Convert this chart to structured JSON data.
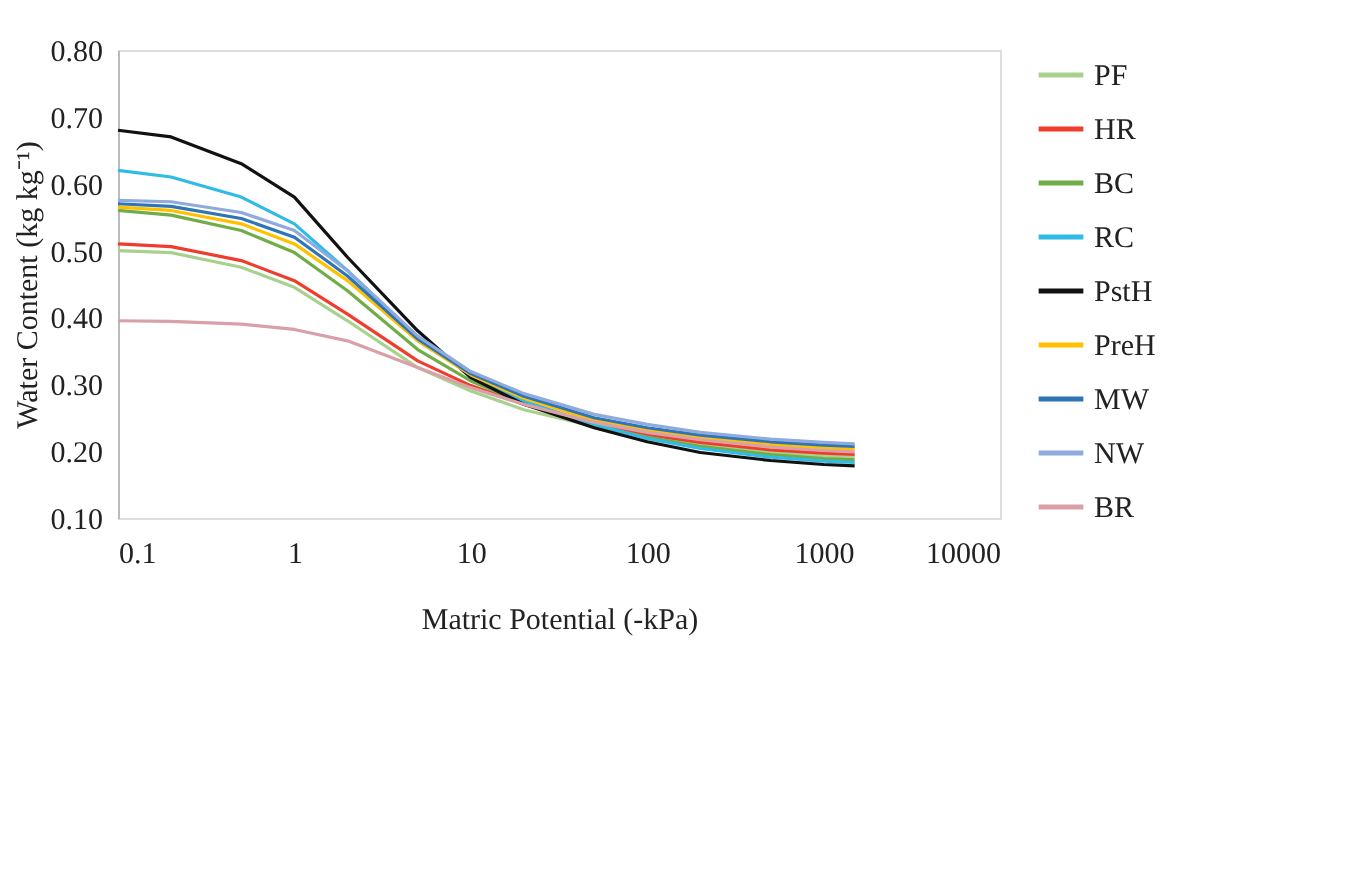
{
  "chart_data": {
    "type": "line",
    "xlabel": "Matric Potential (-kPa)",
    "ylabel": "Water Content (kg kg⁻¹)",
    "log": "x",
    "xlim": [
      0.1,
      10000
    ],
    "xticks": [
      0.1,
      1,
      10,
      100,
      1000,
      10000
    ],
    "ylim": [
      0.1,
      0.8
    ],
    "yticks": [
      {
        "value": 0.1,
        "label": "0.10"
      },
      {
        "value": 0.2,
        "label": "0.20"
      },
      {
        "value": 0.3,
        "label": "0.30"
      },
      {
        "value": 0.4,
        "label": "0.40"
      },
      {
        "value": 0.5,
        "label": "0.50"
      },
      {
        "value": 0.6,
        "label": "0.60"
      },
      {
        "value": 0.7,
        "label": "0.70"
      },
      {
        "value": 0.8,
        "label": "0.80"
      }
    ],
    "grid": false,
    "legend": "right",
    "marker": "none",
    "line_style": "solid",
    "x": [
      0.1,
      0.2,
      0.5,
      1,
      2,
      5,
      10,
      20,
      50,
      100,
      200,
      500,
      1000,
      1500
    ],
    "series": [
      {
        "name": "PF",
        "color": "#a9d18e",
        "values": [
          0.5,
          0.497,
          0.475,
          0.445,
          0.395,
          0.325,
          0.29,
          0.262,
          0.237,
          0.222,
          0.209,
          0.198,
          0.193,
          0.191
        ]
      },
      {
        "name": "HR",
        "color": "#f03c2c",
        "values": [
          0.51,
          0.506,
          0.485,
          0.455,
          0.405,
          0.335,
          0.298,
          0.27,
          0.24,
          0.225,
          0.213,
          0.202,
          0.197,
          0.195
        ]
      },
      {
        "name": "BC",
        "color": "#70ad47",
        "values": [
          0.56,
          0.553,
          0.53,
          0.497,
          0.44,
          0.352,
          0.305,
          0.272,
          0.238,
          0.221,
          0.207,
          0.195,
          0.189,
          0.187
        ]
      },
      {
        "name": "RC",
        "color": "#2ebbe8",
        "values": [
          0.62,
          0.61,
          0.58,
          0.54,
          0.47,
          0.37,
          0.315,
          0.275,
          0.24,
          0.219,
          0.204,
          0.191,
          0.185,
          0.183
        ]
      },
      {
        "name": "PstH",
        "color": "#111111",
        "values": [
          0.68,
          0.67,
          0.63,
          0.58,
          0.49,
          0.38,
          0.31,
          0.27,
          0.235,
          0.214,
          0.198,
          0.186,
          0.18,
          0.178
        ]
      },
      {
        "name": "PreH",
        "color": "#ffc000",
        "values": [
          0.565,
          0.56,
          0.54,
          0.51,
          0.455,
          0.365,
          0.314,
          0.279,
          0.246,
          0.231,
          0.22,
          0.21,
          0.205,
          0.203
        ]
      },
      {
        "name": "MW",
        "color": "#2e75b6",
        "values": [
          0.57,
          0.566,
          0.548,
          0.52,
          0.462,
          0.368,
          0.316,
          0.282,
          0.25,
          0.235,
          0.224,
          0.214,
          0.209,
          0.207
        ]
      },
      {
        "name": "NW",
        "color": "#8faadc",
        "values": [
          0.575,
          0.573,
          0.557,
          0.53,
          0.47,
          0.372,
          0.319,
          0.286,
          0.255,
          0.24,
          0.228,
          0.218,
          0.213,
          0.211
        ]
      },
      {
        "name": "BR",
        "color": "#d9a0a8",
        "values": [
          0.395,
          0.394,
          0.39,
          0.382,
          0.365,
          0.325,
          0.295,
          0.27,
          0.243,
          0.228,
          0.217,
          0.206,
          0.201,
          0.199
        ]
      }
    ]
  }
}
